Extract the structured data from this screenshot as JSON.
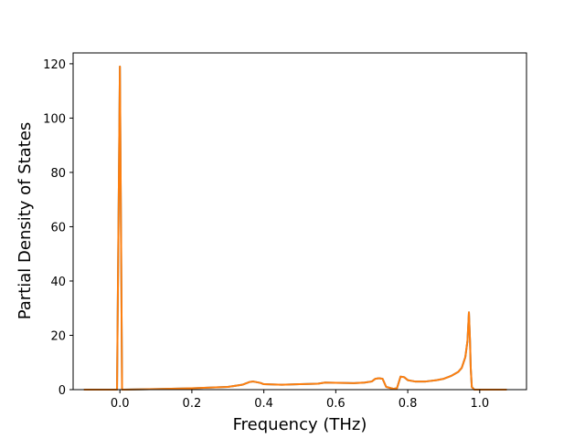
{
  "chart_data": {
    "type": "line",
    "title": "",
    "xlabel": "Frequency (THz)",
    "ylabel": "Partial Density of States",
    "xlim": [
      -0.13,
      1.13
    ],
    "ylim": [
      0,
      124
    ],
    "xticks": [
      0.0,
      0.2,
      0.4,
      0.6,
      0.8,
      1.0
    ],
    "xtick_labels": [
      "0.0",
      "0.2",
      "0.4",
      "0.6",
      "0.8",
      "1.0"
    ],
    "yticks": [
      0,
      20,
      40,
      60,
      80,
      100,
      120
    ],
    "ytick_labels": [
      "0",
      "20",
      "40",
      "60",
      "80",
      "100",
      "120"
    ],
    "grid": false,
    "legend": "none",
    "series": [
      {
        "color": "#1f77b4",
        "x": [
          -0.1,
          -0.008,
          -0.004,
          0.0,
          0.003,
          0.006,
          0.01,
          0.1,
          0.2,
          0.3,
          0.34,
          0.36,
          0.37,
          0.39,
          0.4,
          0.45,
          0.5,
          0.55,
          0.57,
          0.6,
          0.65,
          0.68,
          0.7,
          0.71,
          0.72,
          0.73,
          0.74,
          0.76,
          0.77,
          0.78,
          0.79,
          0.8,
          0.82,
          0.85,
          0.88,
          0.9,
          0.92,
          0.94,
          0.95,
          0.96,
          0.966,
          0.97,
          0.973,
          0.975,
          0.978,
          0.985,
          0.99,
          1.0,
          1.075
        ],
        "y": [
          0,
          0,
          60,
          119,
          60,
          0,
          0,
          0.2,
          0.5,
          1.0,
          1.8,
          2.8,
          3.0,
          2.5,
          2.0,
          1.8,
          2.0,
          2.2,
          2.6,
          2.5,
          2.4,
          2.6,
          3.0,
          4.0,
          4.2,
          4.0,
          1.0,
          0.3,
          0.5,
          4.8,
          4.6,
          3.5,
          3.0,
          3.0,
          3.5,
          4.0,
          5.0,
          6.5,
          8.0,
          12.0,
          18.0,
          28.5,
          18.0,
          8.0,
          1.0,
          0,
          0,
          0,
          0
        ]
      },
      {
        "color": "#ff7f0e",
        "x": [
          -0.1,
          -0.008,
          -0.004,
          0.0,
          0.003,
          0.006,
          0.01,
          0.1,
          0.2,
          0.3,
          0.34,
          0.36,
          0.37,
          0.39,
          0.4,
          0.45,
          0.5,
          0.55,
          0.57,
          0.6,
          0.65,
          0.68,
          0.7,
          0.71,
          0.72,
          0.73,
          0.74,
          0.76,
          0.77,
          0.78,
          0.79,
          0.8,
          0.82,
          0.85,
          0.88,
          0.9,
          0.92,
          0.94,
          0.95,
          0.96,
          0.966,
          0.97,
          0.973,
          0.975,
          0.978,
          0.985,
          0.99,
          1.0,
          1.075
        ],
        "y": [
          0,
          0,
          60,
          119,
          60,
          0,
          0,
          0.2,
          0.5,
          1.0,
          1.8,
          2.8,
          3.0,
          2.5,
          2.0,
          1.8,
          2.0,
          2.2,
          2.6,
          2.5,
          2.4,
          2.6,
          3.0,
          4.0,
          4.2,
          4.0,
          1.0,
          0.3,
          0.5,
          4.8,
          4.6,
          3.5,
          3.0,
          3.0,
          3.5,
          4.0,
          5.0,
          6.5,
          8.0,
          12.0,
          18.0,
          28.5,
          18.0,
          8.0,
          1.0,
          0,
          0,
          0,
          0
        ]
      }
    ]
  }
}
